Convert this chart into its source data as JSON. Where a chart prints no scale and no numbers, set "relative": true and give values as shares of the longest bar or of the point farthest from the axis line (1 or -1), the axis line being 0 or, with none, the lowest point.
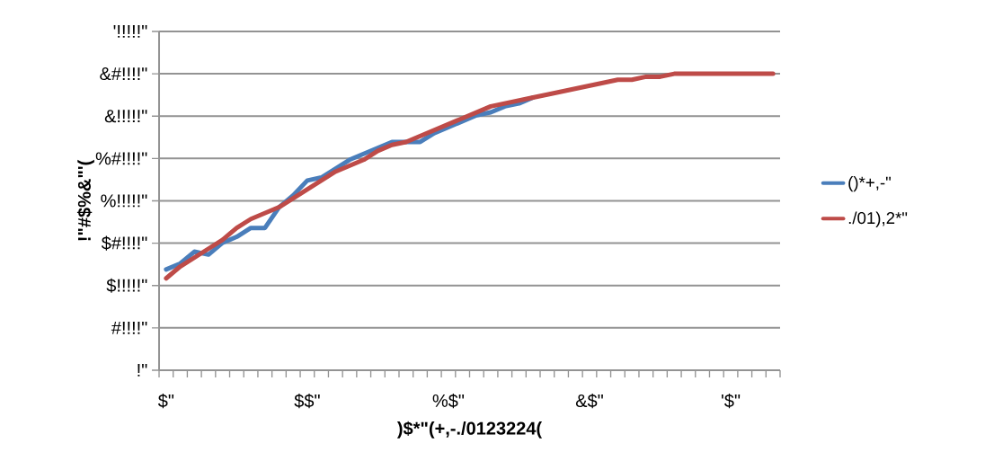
{
  "chart_data": {
    "type": "line",
    "xlabel": ")$*\"(+,-./0123224(",
    "ylabel": "!\"#$%&\"'(",
    "annotations": [
      "!\"",
      "#!!!!\"",
      "$!!!!!\"",
      "$#!!!!\"",
      "%!!!!!\"",
      "%#!!!!\"",
      "&!!!!!\"",
      "&#!!!!\"",
      "'!!!!!\""
    ],
    "relative": true,
    "categories": [
      "$\"",
      null,
      null,
      null,
      null,
      null,
      null,
      null,
      null,
      null,
      "$$\"",
      null,
      null,
      null,
      null,
      null,
      null,
      null,
      null,
      null,
      "%$\"",
      null,
      null,
      null,
      null,
      null,
      null,
      null,
      null,
      null,
      "&$\"",
      null,
      null,
      null,
      null,
      null,
      null,
      null,
      null,
      null,
      "'$\"",
      null,
      null,
      null
    ],
    "series": [
      {
        "name": "()*+,-\"",
        "color": "#4a7ebb",
        "values": [
          0.34,
          0.36,
          0.4,
          0.39,
          0.43,
          0.45,
          0.48,
          0.48,
          0.55,
          0.59,
          0.64,
          0.65,
          0.68,
          0.71,
          0.73,
          0.75,
          0.77,
          0.77,
          0.77,
          0.8,
          0.82,
          0.84,
          0.86,
          0.87,
          0.89,
          0.9,
          0.92,
          null,
          null,
          null,
          null,
          null,
          null,
          null,
          null,
          null,
          null,
          null,
          null,
          null,
          null,
          null,
          null,
          null
        ]
      },
      {
        "name": "./01),2*\"",
        "color": "#be4b48",
        "values": [
          0.31,
          0.35,
          0.38,
          0.41,
          0.44,
          0.48,
          0.51,
          0.53,
          0.55,
          0.58,
          0.61,
          0.64,
          0.67,
          0.69,
          0.71,
          0.74,
          0.76,
          0.77,
          0.79,
          0.81,
          0.83,
          0.85,
          0.87,
          0.89,
          0.9,
          0.91,
          0.92,
          0.93,
          0.94,
          0.95,
          0.96,
          0.97,
          0.98,
          0.98,
          0.99,
          0.99,
          1.0,
          1.0,
          1,
          1,
          1,
          1,
          1,
          1
        ]
      }
    ],
    "grid": "y",
    "legend": "right",
    "marker": "none",
    "line_style": "solid"
  }
}
